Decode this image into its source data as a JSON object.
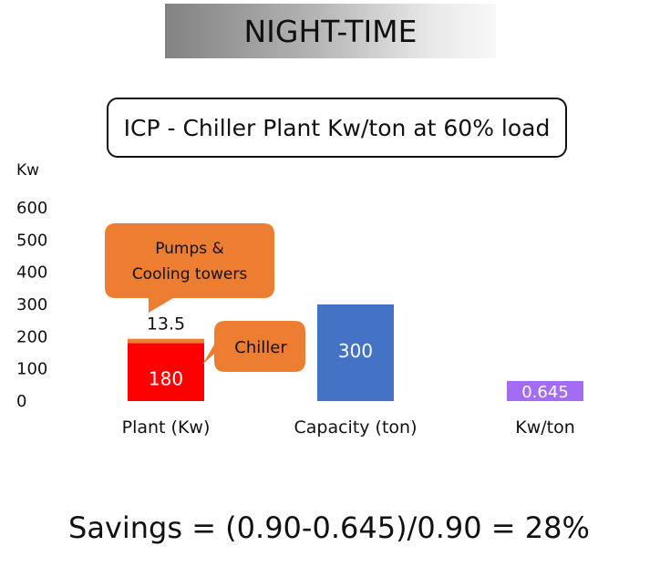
{
  "header": {
    "banner_text": "NIGHT-TIME"
  },
  "chart_data": {
    "type": "bar",
    "title": "ICP - Chiller Plant Kw/ton at 60% load",
    "ylabel": "Kw",
    "xlabel": "",
    "ylim": [
      0,
      600
    ],
    "yticks": [
      0,
      100,
      200,
      300,
      400,
      500,
      600
    ],
    "categories": [
      "Plant (Kw)",
      "Capacity (ton)",
      "Kw/ton"
    ],
    "grid": false,
    "series": [
      {
        "name": "Chiller",
        "values": [
          180,
          null,
          null
        ],
        "color": "#ff0000"
      },
      {
        "name": "Pumps & Cooling towers",
        "values": [
          13.5,
          null,
          null
        ],
        "color": "#f07f30"
      },
      {
        "name": "Capacity",
        "values": [
          null,
          300,
          null
        ],
        "color": "#4472c4"
      },
      {
        "name": "Kw/ton",
        "values": [
          null,
          null,
          0.645
        ],
        "color": "#a46cf2"
      }
    ],
    "data_labels": [
      "180",
      "13.5",
      "300",
      "0.645"
    ],
    "callouts": [
      {
        "text": "Pumps &\nCooling towers",
        "color": "#ed7d31"
      },
      {
        "text": "Chiller",
        "color": "#ed7d31"
      }
    ]
  },
  "footer": {
    "savings_text": "Savings = (0.90-0.645)/0.90 = 28%"
  }
}
